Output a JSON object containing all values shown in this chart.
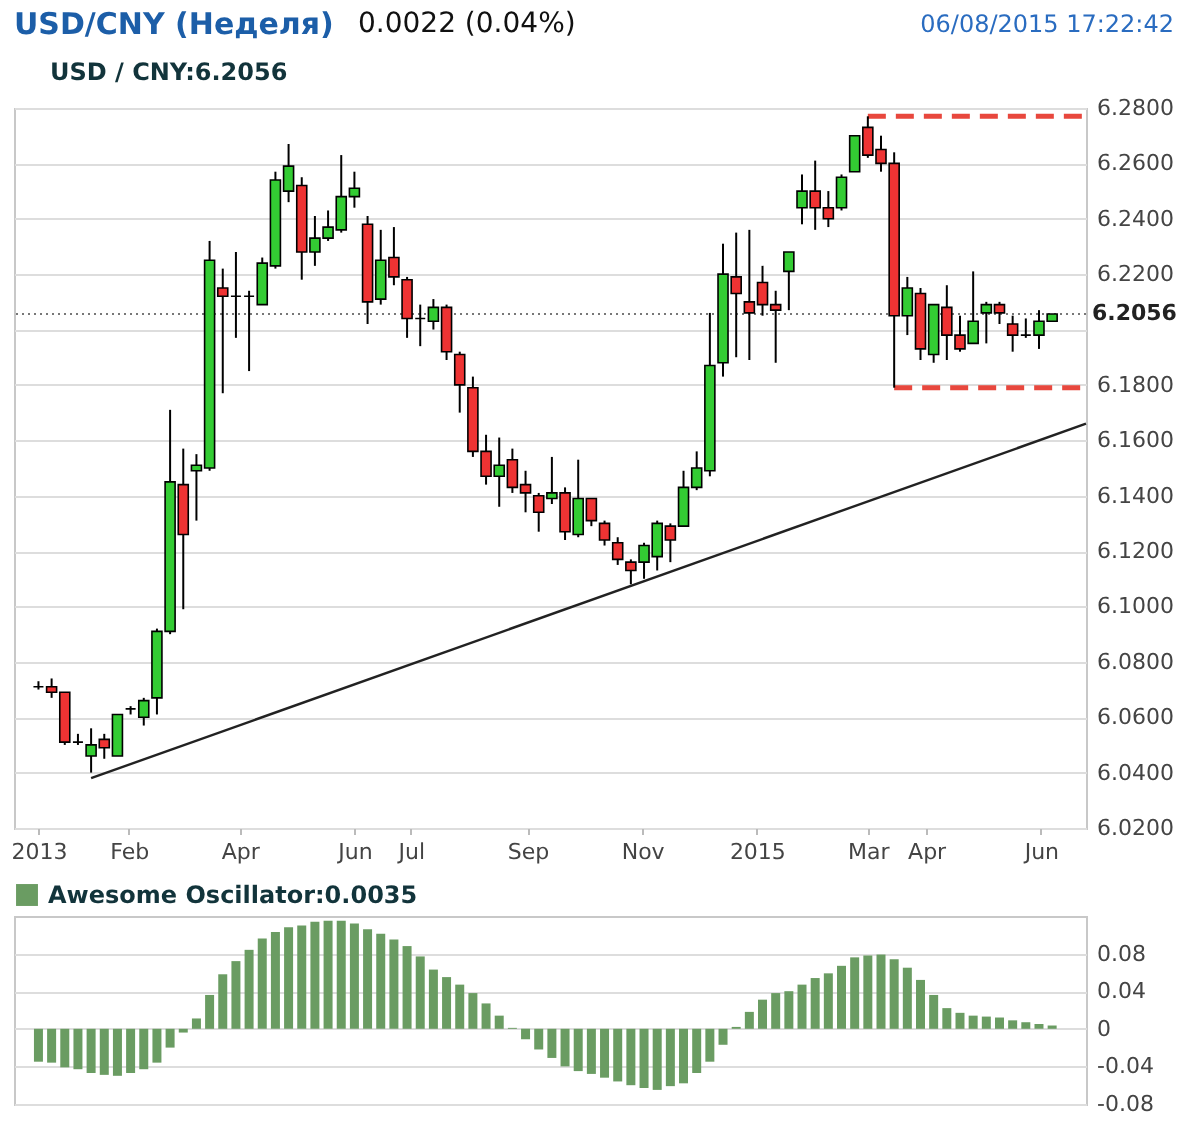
{
  "chart_data": [
    {
      "type": "candlestick",
      "title": "USD/CNY (Неделя)",
      "subtitle": "0.0022 (0.04%)",
      "annotations": [
        "06/08/2015 17:22:42",
        "USD / CNY:6.2056"
      ],
      "x": [
        "2013-12-15",
        "2013-12-22",
        "2013-12-29",
        "2014-01-05",
        "2014-01-12",
        "2014-01-19",
        "2014-01-26",
        "2014-02-02",
        "2014-02-09",
        "2014-02-16",
        "2014-02-23",
        "2014-03-02",
        "2014-03-09",
        "2014-03-16",
        "2014-03-23",
        "2014-03-30",
        "2014-04-06",
        "2014-04-13",
        "2014-04-20",
        "2014-04-27",
        "2014-05-04",
        "2014-05-11",
        "2014-05-18",
        "2014-05-25",
        "2014-06-01",
        "2014-06-08",
        "2014-06-15",
        "2014-06-22",
        "2014-06-29",
        "2014-07-06",
        "2014-07-13",
        "2014-07-20",
        "2014-07-27",
        "2014-08-03",
        "2014-08-10",
        "2014-08-17",
        "2014-08-24",
        "2014-08-31",
        "2014-09-07",
        "2014-09-14",
        "2014-09-21",
        "2014-09-28",
        "2014-10-05",
        "2014-10-12",
        "2014-10-19",
        "2014-10-26",
        "2014-11-02",
        "2014-11-09",
        "2014-11-16",
        "2014-11-23",
        "2014-11-30",
        "2014-12-07",
        "2014-12-14",
        "2014-12-21",
        "2014-12-28",
        "2015-01-04",
        "2015-01-11",
        "2015-01-18",
        "2015-01-25",
        "2015-02-01",
        "2015-02-08",
        "2015-02-15",
        "2015-02-22",
        "2015-03-01",
        "2015-03-08",
        "2015-03-15",
        "2015-03-22",
        "2015-03-29",
        "2015-04-05",
        "2015-04-12",
        "2015-04-19",
        "2015-04-26",
        "2015-05-03",
        "2015-05-10",
        "2015-05-17",
        "2015-05-24",
        "2015-05-31",
        "2015-06-07"
      ],
      "ohlc": [
        [
          6.071,
          6.073,
          6.07,
          6.071
        ],
        [
          6.071,
          6.074,
          6.067,
          6.069
        ],
        [
          6.069,
          6.069,
          6.05,
          6.051
        ],
        [
          6.051,
          6.054,
          6.05,
          6.051
        ],
        [
          6.046,
          6.056,
          6.04,
          6.05
        ],
        [
          6.052,
          6.054,
          6.045,
          6.049
        ],
        [
          6.046,
          6.061,
          6.046,
          6.061
        ],
        [
          6.063,
          6.064,
          6.061,
          6.063
        ],
        [
          6.06,
          6.067,
          6.057,
          6.066
        ],
        [
          6.067,
          6.092,
          6.061,
          6.091
        ],
        [
          6.091,
          6.171,
          6.09,
          6.145
        ],
        [
          6.144,
          6.157,
          6.099,
          6.126
        ],
        [
          6.149,
          6.155,
          6.131,
          6.151
        ],
        [
          6.15,
          6.232,
          6.149,
          6.225
        ],
        [
          6.215,
          6.222,
          6.177,
          6.212
        ],
        [
          6.212,
          6.228,
          6.197,
          6.212
        ],
        [
          6.212,
          6.214,
          6.185,
          6.212
        ],
        [
          6.209,
          6.226,
          6.209,
          6.224
        ],
        [
          6.223,
          6.257,
          6.222,
          6.254
        ],
        [
          6.25,
          6.267,
          6.246,
          6.259
        ],
        [
          6.252,
          6.255,
          6.218,
          6.228
        ],
        [
          6.228,
          6.241,
          6.223,
          6.233
        ],
        [
          6.233,
          6.243,
          6.232,
          6.237
        ],
        [
          6.236,
          6.263,
          6.235,
          6.248
        ],
        [
          6.248,
          6.257,
          6.244,
          6.251
        ],
        [
          6.238,
          6.241,
          6.202,
          6.21
        ],
        [
          6.211,
          6.236,
          6.209,
          6.225
        ],
        [
          6.226,
          6.237,
          6.216,
          6.219
        ],
        [
          6.218,
          6.219,
          6.197,
          6.204
        ],
        [
          6.204,
          6.209,
          6.194,
          6.204
        ],
        [
          6.203,
          6.211,
          6.2,
          6.208
        ],
        [
          6.208,
          6.209,
          6.189,
          6.192
        ],
        [
          6.191,
          6.192,
          6.17,
          6.18
        ],
        [
          6.179,
          6.183,
          6.154,
          6.156
        ],
        [
          6.156,
          6.162,
          6.144,
          6.147
        ],
        [
          6.147,
          6.161,
          6.136,
          6.151
        ],
        [
          6.153,
          6.157,
          6.141,
          6.143
        ],
        [
          6.144,
          6.149,
          6.134,
          6.141
        ],
        [
          6.14,
          6.141,
          6.127,
          6.134
        ],
        [
          6.139,
          6.154,
          6.137,
          6.141
        ],
        [
          6.141,
          6.143,
          6.124,
          6.127
        ],
        [
          6.126,
          6.153,
          6.125,
          6.139
        ],
        [
          6.139,
          6.139,
          6.129,
          6.131
        ],
        [
          6.13,
          6.131,
          6.122,
          6.124
        ],
        [
          6.123,
          6.125,
          6.115,
          6.117
        ],
        [
          6.116,
          6.117,
          6.108,
          6.113
        ],
        [
          6.116,
          6.123,
          6.11,
          6.122
        ],
        [
          6.118,
          6.131,
          6.113,
          6.13
        ],
        [
          6.129,
          6.13,
          6.116,
          6.124
        ],
        [
          6.129,
          6.149,
          6.129,
          6.143
        ],
        [
          6.143,
          6.156,
          6.142,
          6.15
        ],
        [
          6.149,
          6.206,
          6.147,
          6.187
        ],
        [
          6.188,
          6.231,
          6.183,
          6.22
        ],
        [
          6.219,
          6.235,
          6.19,
          6.213
        ],
        [
          6.21,
          6.236,
          6.189,
          6.206
        ],
        [
          6.217,
          6.223,
          6.205,
          6.209
        ],
        [
          6.209,
          6.214,
          6.188,
          6.207
        ],
        [
          6.221,
          6.228,
          6.207,
          6.228
        ],
        [
          6.244,
          6.256,
          6.238,
          6.25
        ],
        [
          6.25,
          6.261,
          6.236,
          6.244
        ],
        [
          6.244,
          6.25,
          6.237,
          6.24
        ],
        [
          6.244,
          6.256,
          6.243,
          6.255
        ],
        [
          6.257,
          6.27,
          6.257,
          6.27
        ],
        [
          6.273,
          6.277,
          6.262,
          6.263
        ],
        [
          6.265,
          6.27,
          6.257,
          6.26
        ],
        [
          6.26,
          6.264,
          6.179,
          6.205
        ],
        [
          6.205,
          6.219,
          6.198,
          6.215
        ],
        [
          6.213,
          6.215,
          6.189,
          6.193
        ],
        [
          6.191,
          6.209,
          6.188,
          6.209
        ],
        [
          6.208,
          6.216,
          6.189,
          6.198
        ],
        [
          6.198,
          6.205,
          6.192,
          6.193
        ],
        [
          6.195,
          6.221,
          6.195,
          6.203
        ],
        [
          6.206,
          6.21,
          6.195,
          6.209
        ],
        [
          6.209,
          6.21,
          6.202,
          6.206
        ],
        [
          6.202,
          6.205,
          6.192,
          6.198
        ],
        [
          6.198,
          6.204,
          6.197,
          6.198
        ],
        [
          6.198,
          6.207,
          6.193,
          6.203
        ],
        [
          6.203,
          6.2056,
          6.203,
          6.2056
        ]
      ],
      "colors": [
        "#000000",
        "#ee3333",
        "#ee3333",
        "#000000",
        "#33cc33",
        "#ee3333",
        "#33cc33",
        "#000000",
        "#33cc33",
        "#33cc33",
        "#33cc33",
        "#ee3333",
        "#33cc33",
        "#33cc33",
        "#ee3333",
        "#000000",
        "#000000",
        "#33cc33",
        "#33cc33",
        "#33cc33",
        "#ee3333",
        "#33cc33",
        "#33cc33",
        "#33cc33",
        "#33cc33",
        "#ee3333",
        "#33cc33",
        "#ee3333",
        "#ee3333",
        "#000000",
        "#33cc33",
        "#ee3333",
        "#ee3333",
        "#ee3333",
        "#ee3333",
        "#33cc33",
        "#ee3333",
        "#ee3333",
        "#ee3333",
        "#33cc33",
        "#ee3333",
        "#33cc33",
        "#ee3333",
        "#ee3333",
        "#ee3333",
        "#ee3333",
        "#33cc33",
        "#33cc33",
        "#ee3333",
        "#33cc33",
        "#33cc33",
        "#33cc33",
        "#33cc33",
        "#ee3333",
        "#ee3333",
        "#ee3333",
        "#ee3333",
        "#33cc33",
        "#33cc33",
        "#ee3333",
        "#ee3333",
        "#33cc33",
        "#33cc33",
        "#ee3333",
        "#ee3333",
        "#ee3333",
        "#33cc33",
        "#ee3333",
        "#33cc33",
        "#ee3333",
        "#ee3333",
        "#33cc33",
        "#33cc33",
        "#ee3333",
        "#ee3333",
        "#000000",
        "#33cc33",
        "#33cc33"
      ],
      "series": [
        {
          "type": "line",
          "x": [
            "2014-01-12",
            "2015-06-25"
          ],
          "values": [
            6.038,
            6.166
          ],
          "color": "#222222",
          "line_style": "solid"
        },
        {
          "type": "line",
          "x": [
            "2015-03-01",
            "2015-06-25"
          ],
          "values": [
            6.277,
            6.277
          ],
          "color": "#e8473d",
          "line_style": "dashed"
        },
        {
          "type": "line",
          "x": [
            "2015-03-15",
            "2015-06-25"
          ],
          "values": [
            6.179,
            6.179
          ],
          "color": "#e8473d",
          "line_style": "dashed"
        }
      ],
      "ref_lines": [
        {
          "axis": "y",
          "value": 6.2056,
          "label": "6.2056",
          "line_style": "dotted",
          "color": "#777777"
        }
      ],
      "xlim": [
        "2013-12-02",
        "2015-06-25"
      ],
      "ylim": [
        6.02,
        6.28
      ],
      "xticks": [
        {
          "value": "2013-12-15",
          "label": "2013"
        },
        {
          "value": "2014-02-01",
          "label": "Feb"
        },
        {
          "value": "2014-04-01",
          "label": "Apr"
        },
        {
          "value": "2014-06-01",
          "label": "Jun"
        },
        {
          "value": "2014-07-01",
          "label": "Jul"
        },
        {
          "value": "2014-09-01",
          "label": "Sep"
        },
        {
          "value": "2014-11-01",
          "label": "Nov"
        },
        {
          "value": "2015-01-01",
          "label": "2015"
        },
        {
          "value": "2015-03-01",
          "label": "Mar"
        },
        {
          "value": "2015-04-01",
          "label": "Apr"
        },
        {
          "value": "2015-06-01",
          "label": "Jun"
        }
      ],
      "yticks": [
        {
          "value": 6.02,
          "label": "6.0200"
        },
        {
          "value": 6.04,
          "label": "6.0400"
        },
        {
          "value": 6.06,
          "label": "6.0600"
        },
        {
          "value": 6.08,
          "label": "6.0800"
        },
        {
          "value": 6.1,
          "label": "6.1000"
        },
        {
          "value": 6.12,
          "label": "6.1200"
        },
        {
          "value": 6.14,
          "label": "6.1400"
        },
        {
          "value": 6.16,
          "label": "6.1600"
        },
        {
          "value": 6.18,
          "label": "6.1800"
        },
        {
          "value": 6.2,
          "label": null
        },
        {
          "value": 6.22,
          "label": "6.2200"
        },
        {
          "value": 6.24,
          "label": "6.2400"
        },
        {
          "value": 6.26,
          "label": "6.2600"
        },
        {
          "value": 6.28,
          "label": "6.2800"
        }
      ],
      "grid": "y"
    },
    {
      "type": "bar",
      "legend": "top left",
      "tick_labels": "y",
      "grid": "y",
      "x": [
        "2013-12-15",
        "2013-12-22",
        "2013-12-29",
        "2014-01-05",
        "2014-01-12",
        "2014-01-19",
        "2014-01-26",
        "2014-02-02",
        "2014-02-09",
        "2014-02-16",
        "2014-02-23",
        "2014-03-02",
        "2014-03-09",
        "2014-03-16",
        "2014-03-23",
        "2014-03-30",
        "2014-04-06",
        "2014-04-13",
        "2014-04-20",
        "2014-04-27",
        "2014-05-04",
        "2014-05-11",
        "2014-05-18",
        "2014-05-25",
        "2014-06-01",
        "2014-06-08",
        "2014-06-15",
        "2014-06-22",
        "2014-06-29",
        "2014-07-06",
        "2014-07-13",
        "2014-07-20",
        "2014-07-27",
        "2014-08-03",
        "2014-08-10",
        "2014-08-17",
        "2014-08-24",
        "2014-08-31",
        "2014-09-07",
        "2014-09-14",
        "2014-09-21",
        "2014-09-28",
        "2014-10-05",
        "2014-10-12",
        "2014-10-19",
        "2014-10-26",
        "2014-11-02",
        "2014-11-09",
        "2014-11-16",
        "2014-11-23",
        "2014-11-30",
        "2014-12-07",
        "2014-12-14",
        "2014-12-21",
        "2014-12-28",
        "2015-01-04",
        "2015-01-11",
        "2015-01-18",
        "2015-01-25",
        "2015-02-01",
        "2015-02-08",
        "2015-02-15",
        "2015-02-22",
        "2015-03-01",
        "2015-03-08",
        "2015-03-15",
        "2015-03-22",
        "2015-03-29",
        "2015-04-05",
        "2015-04-12",
        "2015-04-19",
        "2015-04-26",
        "2015-05-03",
        "2015-05-10",
        "2015-05-17",
        "2015-05-24",
        "2015-05-31",
        "2015-06-07"
      ],
      "series": [
        {
          "name": "Awesome Oscillator:0.0035",
          "color": "#6a9c62",
          "values": [
            -0.035,
            -0.036,
            -0.041,
            -0.043,
            -0.047,
            -0.049,
            -0.05,
            -0.047,
            -0.043,
            -0.036,
            -0.02,
            -0.004,
            0.011,
            0.036,
            0.058,
            0.072,
            0.084,
            0.096,
            0.103,
            0.108,
            0.11,
            0.114,
            0.115,
            0.115,
            0.112,
            0.106,
            0.101,
            0.095,
            0.088,
            0.077,
            0.063,
            0.055,
            0.047,
            0.038,
            0.027,
            0.014,
            0.001,
            -0.011,
            -0.022,
            -0.031,
            -0.04,
            -0.045,
            -0.048,
            -0.052,
            -0.056,
            -0.06,
            -0.063,
            -0.065,
            -0.061,
            -0.058,
            -0.047,
            -0.035,
            -0.017,
            0.002,
            0.018,
            0.031,
            0.038,
            0.04,
            0.047,
            0.054,
            0.059,
            0.067,
            0.076,
            0.078,
            0.079,
            0.074,
            0.065,
            0.052,
            0.036,
            0.022,
            0.017,
            0.014,
            0.013,
            0.012,
            0.009,
            0.007,
            0.005,
            0.0035
          ]
        }
      ],
      "xlim": [
        "2013-12-02",
        "2015-06-25"
      ],
      "ylim": [
        -0.08,
        0.12
      ],
      "yticks": [
        -0.08,
        -0.04,
        0,
        0.04,
        0.08
      ]
    }
  ]
}
